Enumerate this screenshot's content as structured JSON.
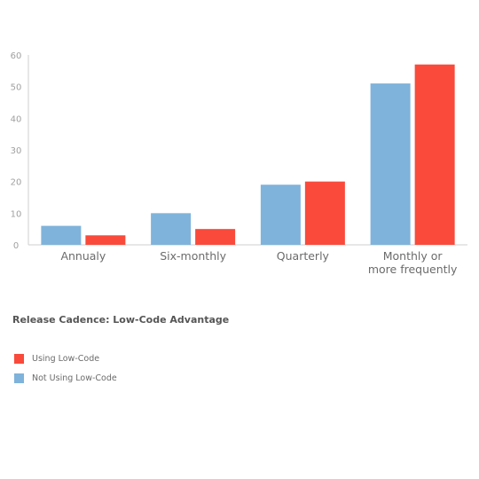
{
  "chart_data": {
    "type": "bar",
    "title": "Release Cadence: Low-Code Advantage",
    "categories": [
      [
        "Annualy"
      ],
      [
        "Six-monthly"
      ],
      [
        "Quarterly"
      ],
      [
        "Monthly or",
        "more frequently"
      ]
    ],
    "series": [
      {
        "name": "Not Using Low-Code",
        "color": "#7fb3db",
        "values": [
          6,
          10,
          19,
          51
        ]
      },
      {
        "name": "Using Low-Code",
        "color": "#f94a3b",
        "values": [
          3,
          5,
          20,
          57
        ]
      }
    ],
    "ylim": [
      0,
      60
    ],
    "yticks": [
      "0",
      "10",
      "20",
      "30",
      "40",
      "50",
      "60"
    ],
    "grid": false,
    "legend_position": "bottom-left"
  },
  "legend": [
    {
      "label": "Using Low-Code",
      "color": "#f94a3b"
    },
    {
      "label": "Not Using Low-Code",
      "color": "#7fb3db"
    }
  ]
}
